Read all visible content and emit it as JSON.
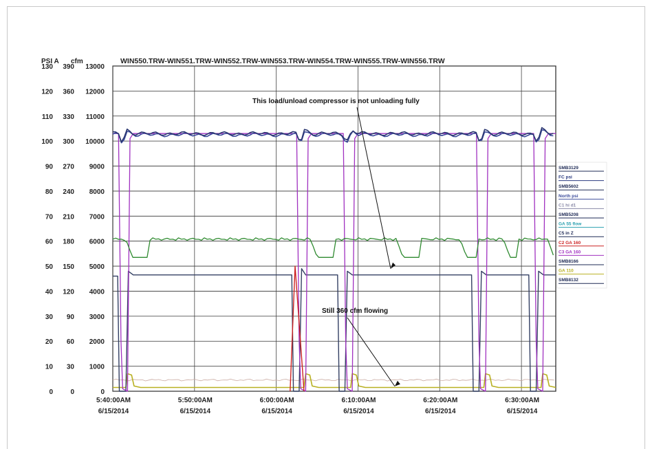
{
  "chart_data": {
    "type": "line",
    "title": "WIN550.TRW-WIN551.TRW-WIN552.TRW-WIN553.TRW-WIN554.TRW-WIN555.TRW-WIN556.TRW",
    "axis_headers": [
      "PSI A",
      "cfm"
    ],
    "y_axes": [
      {
        "ticks": [
          0,
          10,
          20,
          30,
          40,
          50,
          60,
          70,
          80,
          90,
          100,
          110,
          120,
          130
        ]
      },
      {
        "ticks": [
          0,
          30,
          60,
          90,
          120,
          150,
          180,
          210,
          240,
          270,
          300,
          330,
          360,
          390
        ]
      },
      {
        "ticks": [
          0,
          1000,
          2000,
          3000,
          4000,
          5000,
          6000,
          7000,
          8000,
          9000,
          10000,
          11000,
          12000,
          13000
        ]
      }
    ],
    "ylim": [
      0,
      130
    ],
    "x_ticks": [
      {
        "time": "5:40:00AM",
        "date": "6/15/2014"
      },
      {
        "time": "5:50:00AM",
        "date": "6/15/2014"
      },
      {
        "time": "6:00:00AM",
        "date": "6/15/2014"
      },
      {
        "time": "6:10:00AM",
        "date": "6/15/2014"
      },
      {
        "time": "6:20:00AM",
        "date": "6/15/2014"
      },
      {
        "time": "6:30:00AM",
        "date": "6/15/2014"
      }
    ],
    "xlim_minutes": [
      0,
      54.2
    ],
    "grid": true,
    "legend_position": "right",
    "legend": [
      {
        "label": "SMB3129",
        "color": "#1e2a55"
      },
      {
        "label": "FC psi",
        "color": "#2a3a80"
      },
      {
        "label": "SMB5602",
        "color": "#1e2a55"
      },
      {
        "label": "North psi",
        "color": "#3a4a9a"
      },
      {
        "label": "C1 hi d1",
        "color": "#8a8aa8"
      },
      {
        "label": "SMB5208",
        "color": "#1e2a55"
      },
      {
        "label": "GA 55 flow",
        "color": "#2aa0b0"
      },
      {
        "label": "C5 in Z",
        "color": "#1e2a55"
      },
      {
        "label": "C2 GA 160",
        "color": "#cc2222"
      },
      {
        "label": "C3 GA 160",
        "color": "#a030c0"
      },
      {
        "label": "SMB8166",
        "color": "#1e2a55"
      },
      {
        "label": "GA 110",
        "color": "#b8b020"
      },
      {
        "label": "SMB8132",
        "color": "#1e2a55"
      }
    ],
    "annotations": [
      {
        "text": "This load/unload compressor is not unloading fully",
        "points_to": {
          "x": 34,
          "y": 49
        }
      },
      {
        "text": "Still 360 cfm flowing",
        "points_to": {
          "x": 34.5,
          "y": 2
        }
      }
    ],
    "unload_events_minutes": [
      0.5,
      22.3,
      28.0,
      44.3,
      51.3
    ],
    "series": [
      {
        "name": "SMB3129",
        "color": "#2a3670",
        "baseline": 103
      },
      {
        "name": "SMB5602",
        "color": "#3a4a9a",
        "baseline": 102.5
      },
      {
        "name": "C5 in Z",
        "color": "#2f8a30",
        "baseline": 60.8,
        "dip": 53.5
      },
      {
        "name": "SMB8132",
        "color": "#333f63",
        "loaded": 46,
        "unloaded": 0
      },
      {
        "name": "C3 GA 160",
        "color": "#a030c0",
        "loaded": 103,
        "unloaded": 0
      },
      {
        "name": "C2 GA 160",
        "color": "#cc2222",
        "peak": 50,
        "at_minute": 22.3
      },
      {
        "name": "GA 110",
        "color": "#b8b020",
        "baseline": 1.5,
        "spike": 7
      },
      {
        "name": "C1 hi d1",
        "color": "#c9a9a0",
        "baseline": 4.5
      }
    ]
  }
}
